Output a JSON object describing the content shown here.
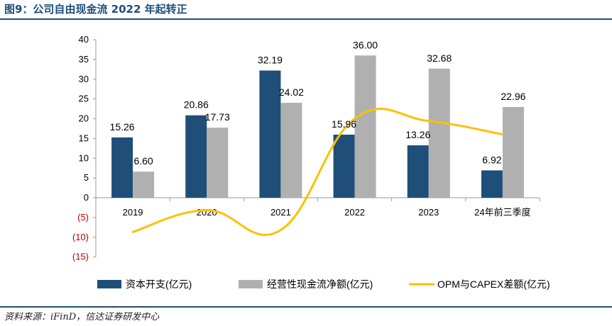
{
  "header": {
    "title": "图9：公司自由现金流 2022 年起转正"
  },
  "footer": {
    "source": "资料来源：iFinD，信达证券研发中心"
  },
  "chart_data": {
    "type": "bar",
    "categories": [
      "2019",
      "2020",
      "2021",
      "2022",
      "2023",
      "24年前三季度"
    ],
    "series": [
      {
        "name": "资本开支(亿元)",
        "kind": "bar",
        "color": "#1f4e79",
        "values": [
          15.26,
          20.86,
          32.19,
          15.96,
          13.26,
          6.92
        ],
        "labels": [
          "15.26",
          "20.86",
          "32.19",
          "15.96",
          "13.26",
          "6.92"
        ]
      },
      {
        "name": "经营性现金流净额(亿元)",
        "kind": "bar",
        "color": "#b0b0b0",
        "values": [
          6.6,
          17.73,
          24.02,
          36.0,
          32.68,
          22.96
        ],
        "labels": [
          "6.60",
          "17.73",
          "24.02",
          "36.00",
          "32.68",
          "22.96"
        ]
      },
      {
        "name": "OPM与CAPEX差额(亿元)",
        "kind": "line",
        "color": "#ffc000",
        "values": [
          -8.66,
          -3.13,
          -8.17,
          20.04,
          19.42,
          16.04
        ]
      }
    ],
    "y_ticks": [
      40,
      35,
      30,
      25,
      20,
      15,
      10,
      5,
      0,
      -5,
      -10,
      -15
    ],
    "y_tick_labels": [
      "40",
      "35",
      "30",
      "25",
      "20",
      "15",
      "10",
      "5",
      "0",
      "(5)",
      "(10)",
      "(15)"
    ],
    "negative_tick_color": "#c00000",
    "ylim": [
      -15,
      40
    ],
    "legend_position": "bottom",
    "grid": false
  }
}
